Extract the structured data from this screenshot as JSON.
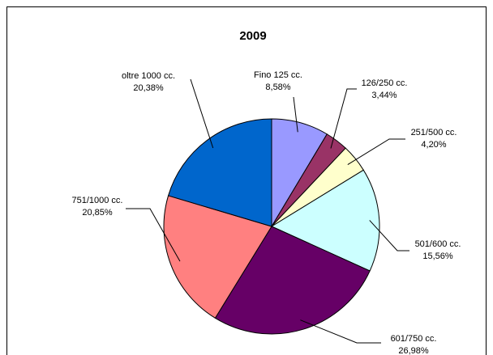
{
  "chart_data": {
    "type": "pie",
    "title": "2009",
    "categories": [
      "Fino 125 cc.",
      "126/250 cc.",
      "251/500  cc.",
      "501/600  cc.",
      "601/750  cc.",
      "751/1000 cc.",
      "oltre 1000 cc."
    ],
    "values": [
      8.58,
      3.44,
      4.2,
      15.56,
      26.98,
      20.85,
      20.38
    ],
    "value_labels": [
      "8,58%",
      "3,44%",
      "4,20%",
      "15,56%",
      "26,98%",
      "20,85%",
      "20,38%"
    ],
    "colors": [
      "#9999ff",
      "#993366",
      "#ffffcc",
      "#ccffff",
      "#660066",
      "#ff8080",
      "#0066cc"
    ]
  }
}
